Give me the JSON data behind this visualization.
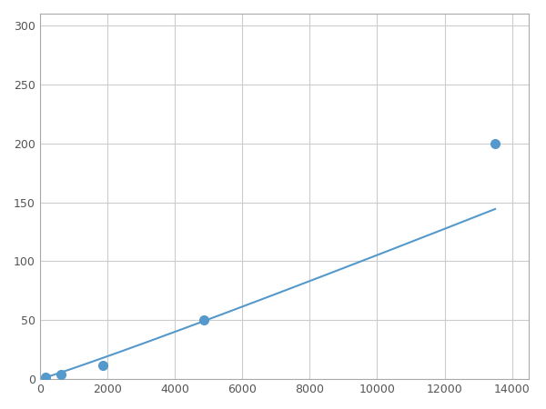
{
  "x_data": [
    156,
    625,
    1875,
    4875,
    13500
  ],
  "y_data": [
    2.0,
    4.0,
    12.0,
    50.0,
    200.0
  ],
  "line_color": "#5599cc",
  "marker_color": "#5599cc",
  "marker_size": 7,
  "xlim": [
    0,
    14500
  ],
  "ylim": [
    0,
    310
  ],
  "xticks": [
    0,
    2000,
    4000,
    6000,
    8000,
    10000,
    12000,
    14000
  ],
  "yticks": [
    0,
    50,
    100,
    150,
    200,
    250,
    300
  ],
  "grid": true,
  "grid_color": "#cccccc",
  "background_color": "#ffffff",
  "spine_color": "#aaaaaa"
}
